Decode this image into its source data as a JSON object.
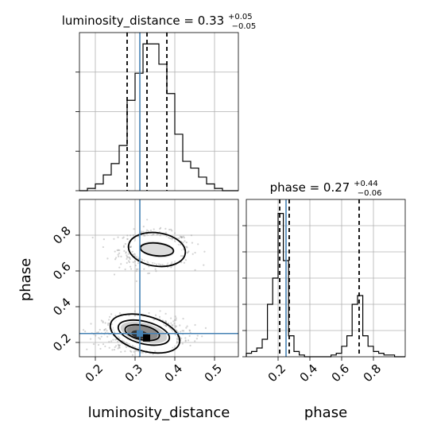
{
  "chart_data": [
    {
      "type": "histogram",
      "panel": "luminosity_distance marginal",
      "title_parts": {
        "label": "luminosity_distance = 0.33",
        "sup": "+0.05",
        "sub": "−0.05"
      },
      "x": "luminosity_distance",
      "bin_edges": [
        0.16,
        0.18,
        0.2,
        0.22,
        0.24,
        0.26,
        0.28,
        0.3,
        0.32,
        0.34,
        0.36,
        0.38,
        0.4,
        0.42,
        0.44,
        0.46,
        0.48,
        0.5,
        0.52,
        0.54,
        0.56
      ],
      "counts": [
        0,
        1,
        3,
        7,
        12,
        20,
        40,
        52,
        65,
        65,
        56,
        43,
        25,
        13,
        10,
        6,
        3,
        1,
        0,
        0
      ],
      "xlim": [
        0.16,
        0.56
      ],
      "ylim": [
        0,
        70
      ],
      "quantiles": [
        0.28,
        0.33,
        0.38
      ],
      "truth": 0.312,
      "grid": true
    },
    {
      "type": "histogram",
      "panel": "phase marginal",
      "title_parts": {
        "label": "phase = 0.27",
        "sup": "+0.44",
        "sub": "−0.06"
      },
      "x": "phase",
      "bin_edges": [
        0.0,
        0.033,
        0.066,
        0.1,
        0.133,
        0.166,
        0.2,
        0.233,
        0.266,
        0.3,
        0.333,
        0.366,
        0.4,
        0.433,
        0.466,
        0.5,
        0.533,
        0.566,
        0.6,
        0.633,
        0.666,
        0.7,
        0.733,
        0.766,
        0.8,
        0.833,
        0.866,
        0.9,
        0.933,
        0.966,
        1.0
      ],
      "counts": [
        2,
        3,
        5,
        10,
        30,
        45,
        82,
        55,
        12,
        3,
        1,
        0,
        0,
        0,
        0,
        0,
        1,
        2,
        6,
        12,
        30,
        35,
        12,
        6,
        3,
        2,
        1,
        1,
        0,
        0
      ],
      "xlim": [
        0.0,
        1.0
      ],
      "ylim": [
        0,
        90
      ],
      "quantiles": [
        0.21,
        0.27,
        0.71
      ],
      "truth": 0.25,
      "grid": true
    },
    {
      "type": "scatter",
      "panel": "joint luminosity_distance vs phase",
      "x": "luminosity_distance",
      "y": "phase",
      "xlim": [
        0.16,
        0.56
      ],
      "ylim": [
        0.12,
        1.0
      ],
      "clusters": [
        {
          "center": [
            0.35,
            0.72
          ],
          "spread": [
            0.045,
            0.05
          ],
          "n": 520
        },
        {
          "center": [
            0.32,
            0.25
          ],
          "spread": [
            0.05,
            0.045
          ],
          "n": 820
        }
      ],
      "truth": [
        0.312,
        0.25
      ],
      "grid": true
    }
  ],
  "axes": {
    "x_ticks_d": [
      "0.2",
      "0.3",
      "0.4",
      "0.5"
    ],
    "y_ticks_phase": [
      "0.2",
      "0.4",
      "0.6",
      "0.8"
    ],
    "x_ticks_phase": [
      "0.2",
      "0.4",
      "0.6",
      "0.8"
    ],
    "label_d": "luminosity_distance",
    "label_phase_y": "phase",
    "label_phase_x": "phase"
  },
  "colors": {
    "truth": "#4682b4",
    "hist": "#000000",
    "points": "#9e9e9e",
    "grid": "#b0b0b0"
  }
}
